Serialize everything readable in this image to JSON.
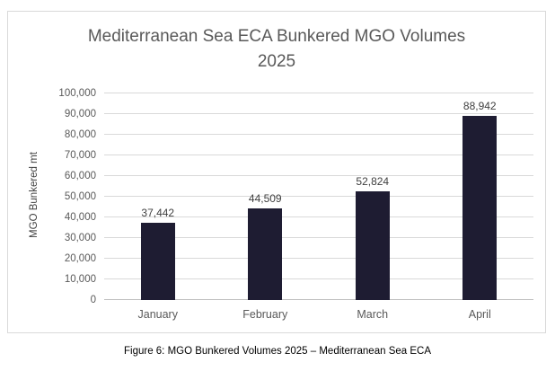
{
  "chart": {
    "title_line1": "Mediterranean Sea ECA Bunkered MGO Volumes",
    "title_line2": "2025",
    "y_axis_title": "MGO Bunkered mt"
  },
  "caption": "Figure 6: MGO Bunkered Volumes 2025 – Mediterranean Sea ECA",
  "chart_data": {
    "type": "bar",
    "title": "Mediterranean Sea ECA Bunkered MGO Volumes 2025",
    "categories": [
      "January",
      "February",
      "March",
      "April"
    ],
    "values": [
      37442,
      44509,
      52824,
      88942
    ],
    "data_labels": [
      "37,442",
      "44,509",
      "52,824",
      "88,942"
    ],
    "xlabel": "",
    "ylabel": "MGO Bunkered mt",
    "ylim": [
      0,
      100000
    ],
    "ytick_step": 10000,
    "ytick_labels": [
      "0",
      "10,000",
      "20,000",
      "30,000",
      "40,000",
      "50,000",
      "60,000",
      "70,000",
      "80,000",
      "90,000",
      "100,000"
    ],
    "grid": true,
    "legend": "none",
    "bar_color": "#1e1c32",
    "gridline_color": "#d9d9d9",
    "axis_line_color": "#bfbfbf",
    "title_color": "#595959",
    "tick_label_color": "#595959",
    "data_label_color": "#404040"
  }
}
